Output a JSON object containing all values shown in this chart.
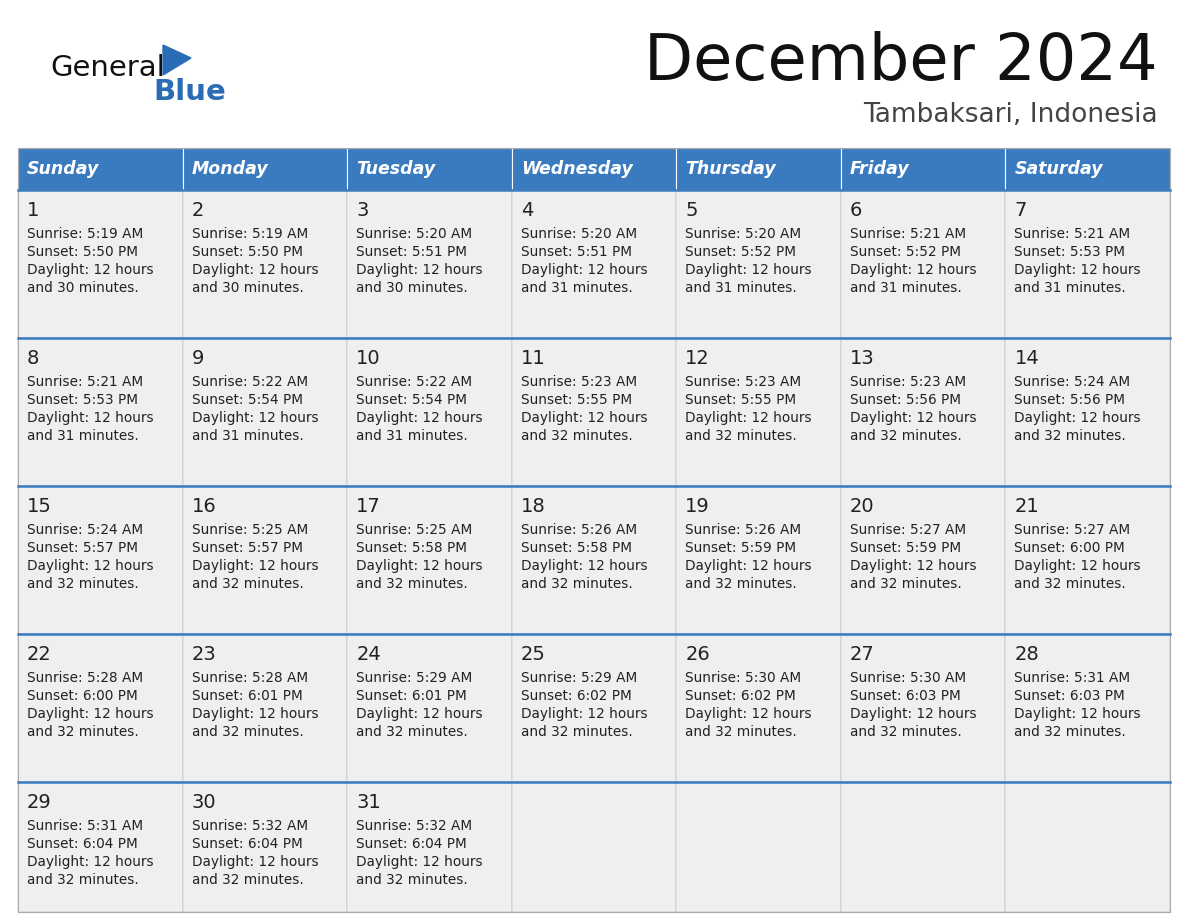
{
  "title": "December 2024",
  "subtitle": "Tambaksari, Indonesia",
  "header_color": "#3a7abf",
  "header_text_color": "#ffffff",
  "cell_bg_color": "#efefef",
  "week_line_color": "#3a7abf",
  "day_names": [
    "Sunday",
    "Monday",
    "Tuesday",
    "Wednesday",
    "Thursday",
    "Friday",
    "Saturday"
  ],
  "weeks": [
    [
      {
        "day": 1,
        "sunrise": "5:19 AM",
        "sunset": "5:50 PM",
        "daylight": "30 minutes."
      },
      {
        "day": 2,
        "sunrise": "5:19 AM",
        "sunset": "5:50 PM",
        "daylight": "30 minutes."
      },
      {
        "day": 3,
        "sunrise": "5:20 AM",
        "sunset": "5:51 PM",
        "daylight": "30 minutes."
      },
      {
        "day": 4,
        "sunrise": "5:20 AM",
        "sunset": "5:51 PM",
        "daylight": "31 minutes."
      },
      {
        "day": 5,
        "sunrise": "5:20 AM",
        "sunset": "5:52 PM",
        "daylight": "31 minutes."
      },
      {
        "day": 6,
        "sunrise": "5:21 AM",
        "sunset": "5:52 PM",
        "daylight": "31 minutes."
      },
      {
        "day": 7,
        "sunrise": "5:21 AM",
        "sunset": "5:53 PM",
        "daylight": "31 minutes."
      }
    ],
    [
      {
        "day": 8,
        "sunrise": "5:21 AM",
        "sunset": "5:53 PM",
        "daylight": "31 minutes."
      },
      {
        "day": 9,
        "sunrise": "5:22 AM",
        "sunset": "5:54 PM",
        "daylight": "31 minutes."
      },
      {
        "day": 10,
        "sunrise": "5:22 AM",
        "sunset": "5:54 PM",
        "daylight": "31 minutes."
      },
      {
        "day": 11,
        "sunrise": "5:23 AM",
        "sunset": "5:55 PM",
        "daylight": "32 minutes."
      },
      {
        "day": 12,
        "sunrise": "5:23 AM",
        "sunset": "5:55 PM",
        "daylight": "32 minutes."
      },
      {
        "day": 13,
        "sunrise": "5:23 AM",
        "sunset": "5:56 PM",
        "daylight": "32 minutes."
      },
      {
        "day": 14,
        "sunrise": "5:24 AM",
        "sunset": "5:56 PM",
        "daylight": "32 minutes."
      }
    ],
    [
      {
        "day": 15,
        "sunrise": "5:24 AM",
        "sunset": "5:57 PM",
        "daylight": "32 minutes."
      },
      {
        "day": 16,
        "sunrise": "5:25 AM",
        "sunset": "5:57 PM",
        "daylight": "32 minutes."
      },
      {
        "day": 17,
        "sunrise": "5:25 AM",
        "sunset": "5:58 PM",
        "daylight": "32 minutes."
      },
      {
        "day": 18,
        "sunrise": "5:26 AM",
        "sunset": "5:58 PM",
        "daylight": "32 minutes."
      },
      {
        "day": 19,
        "sunrise": "5:26 AM",
        "sunset": "5:59 PM",
        "daylight": "32 minutes."
      },
      {
        "day": 20,
        "sunrise": "5:27 AM",
        "sunset": "5:59 PM",
        "daylight": "32 minutes."
      },
      {
        "day": 21,
        "sunrise": "5:27 AM",
        "sunset": "6:00 PM",
        "daylight": "32 minutes."
      }
    ],
    [
      {
        "day": 22,
        "sunrise": "5:28 AM",
        "sunset": "6:00 PM",
        "daylight": "32 minutes."
      },
      {
        "day": 23,
        "sunrise": "5:28 AM",
        "sunset": "6:01 PM",
        "daylight": "32 minutes."
      },
      {
        "day": 24,
        "sunrise": "5:29 AM",
        "sunset": "6:01 PM",
        "daylight": "32 minutes."
      },
      {
        "day": 25,
        "sunrise": "5:29 AM",
        "sunset": "6:02 PM",
        "daylight": "32 minutes."
      },
      {
        "day": 26,
        "sunrise": "5:30 AM",
        "sunset": "6:02 PM",
        "daylight": "32 minutes."
      },
      {
        "day": 27,
        "sunrise": "5:30 AM",
        "sunset": "6:03 PM",
        "daylight": "32 minutes."
      },
      {
        "day": 28,
        "sunrise": "5:31 AM",
        "sunset": "6:03 PM",
        "daylight": "32 minutes."
      }
    ],
    [
      {
        "day": 29,
        "sunrise": "5:31 AM",
        "sunset": "6:04 PM",
        "daylight": "32 minutes."
      },
      {
        "day": 30,
        "sunrise": "5:32 AM",
        "sunset": "6:04 PM",
        "daylight": "32 minutes."
      },
      {
        "day": 31,
        "sunrise": "5:32 AM",
        "sunset": "6:04 PM",
        "daylight": "32 minutes."
      },
      null,
      null,
      null,
      null
    ]
  ],
  "logo_general_color": "#111111",
  "logo_blue_color": "#2a6db5",
  "border_color": "#aaaaaa",
  "fig_width": 11.88,
  "fig_height": 9.18,
  "dpi": 100
}
